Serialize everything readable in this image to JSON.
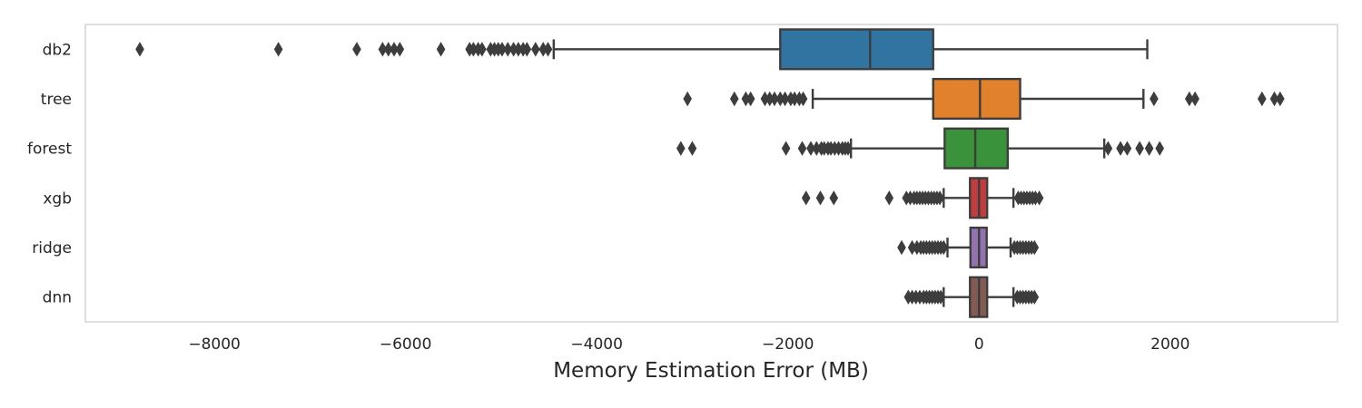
{
  "chart_data": {
    "type": "boxplot",
    "orientation": "horizontal",
    "title": "",
    "xlabel": "Memory Estimation Error (MB)",
    "ylabel": "",
    "xlim": [
      -9350,
      3750
    ],
    "xticks": [
      -8000,
      -6000,
      -4000,
      -2000,
      0,
      2000
    ],
    "xtick_labels": [
      "−8000",
      "−6000",
      "−4000",
      "−2000",
      "0",
      "2000"
    ],
    "grid": false,
    "legend": "none",
    "colors": {
      "db2": "#3274a1",
      "tree": "#e1812c",
      "forest": "#3a923a",
      "xgb": "#c03d3e",
      "ridge": "#9372b2",
      "dnn": "#845b53",
      "lines": "#3d3d3d",
      "frame": "#cccccc"
    },
    "categories": [
      "db2",
      "tree",
      "forest",
      "xgb",
      "ridge",
      "dnn"
    ],
    "boxes": [
      {
        "name": "db2",
        "whisker_low": -4450,
        "q1": -2080,
        "median": -1140,
        "q3": -480,
        "whisker_high": 1760,
        "outliers": [
          -8780,
          -7330,
          -6510,
          -6240,
          -6180,
          -6120,
          -6060,
          -5630,
          -5330,
          -5290,
          -5240,
          -5200,
          -5110,
          -5070,
          -5030,
          -4990,
          -4930,
          -4870,
          -4820,
          -4770,
          -4730,
          -4640,
          -4560,
          -4510
        ]
      },
      {
        "name": "tree",
        "whisker_low": -1740,
        "q1": -480,
        "median": 10,
        "q3": 430,
        "whisker_high": 1720,
        "outliers": [
          -3050,
          -2560,
          -2440,
          -2390,
          -2240,
          -2190,
          -2140,
          -2080,
          -2030,
          -1970,
          -1930,
          -1880,
          -1840,
          1830,
          2200,
          2260,
          2960,
          3090,
          3150
        ]
      },
      {
        "name": "forest",
        "whisker_low": -1340,
        "q1": -360,
        "median": -40,
        "q3": 300,
        "whisker_high": 1310,
        "outliers": [
          -3120,
          -3000,
          -2020,
          -1850,
          -1760,
          -1700,
          -1650,
          -1620,
          -1580,
          -1550,
          -1510,
          -1470,
          -1430,
          -1400,
          -1370,
          1350,
          1480,
          1550,
          1680,
          1780,
          1890
        ]
      },
      {
        "name": "xgb",
        "whisker_low": -370,
        "q1": -95,
        "median": 0,
        "q3": 85,
        "whisker_high": 360,
        "outliers": [
          -1810,
          -1660,
          -1520,
          -940,
          -760,
          -720,
          -680,
          -650,
          -620,
          -590,
          -560,
          -530,
          -500,
          -470,
          -440,
          -410,
          410,
          440,
          470,
          500,
          530,
          560,
          590,
          630
        ]
      },
      {
        "name": "ridge",
        "whisker_low": -330,
        "q1": -90,
        "median": 0,
        "q3": 80,
        "whisker_high": 330,
        "outliers": [
          -810,
          -700,
          -650,
          -610,
          -580,
          -550,
          -520,
          -490,
          -460,
          -430,
          -400,
          -370,
          370,
          400,
          430,
          460,
          490,
          520,
          550,
          580
        ]
      },
      {
        "name": "dnn",
        "whisker_low": -370,
        "q1": -95,
        "median": 0,
        "q3": 85,
        "whisker_high": 360,
        "outliers": [
          -740,
          -700,
          -660,
          -620,
          -580,
          -550,
          -520,
          -490,
          -460,
          -430,
          -400,
          400,
          430,
          460,
          490,
          520,
          550,
          580
        ]
      }
    ]
  }
}
